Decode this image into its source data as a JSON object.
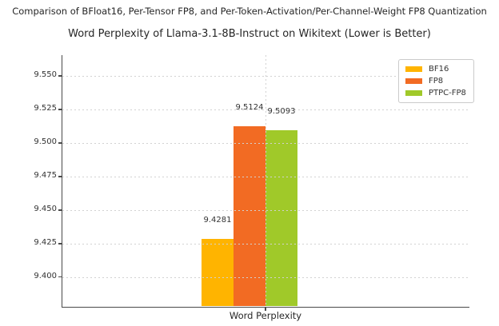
{
  "figure": {
    "suptitle": "Comparison of BFloat16, Per-Tensor FP8, and Per-Token-Activation/Per-Channel-Weight FP8 Quantization"
  },
  "chart_data": {
    "type": "bar",
    "title": "Word Perplexity of Llama-3.1-8B-Instruct on Wikitext (Lower is Better)",
    "categories": [
      "Word Perplexity"
    ],
    "series": [
      {
        "name": "BF16",
        "values": [
          9.4281
        ],
        "data_label": "9.4281",
        "color": "#FFB400"
      },
      {
        "name": "FP8",
        "values": [
          9.5124
        ],
        "data_label": "9.5124",
        "color": "#F26B23"
      },
      {
        "name": "PTPC-FP8",
        "values": [
          9.5093
        ],
        "data_label": "9.5093",
        "color": "#A0C929"
      }
    ],
    "xlabel": "",
    "ylabel": "",
    "x_tick_label": "Word Perplexity",
    "ylim": [
      9.378,
      9.5655
    ],
    "yticks": [
      9.4,
      9.425,
      9.45,
      9.475,
      9.5,
      9.525,
      9.55
    ],
    "ytick_labels": [
      "9.400",
      "9.425",
      "9.450",
      "9.475",
      "9.500",
      "9.525",
      "9.550"
    ],
    "grid": "dotted horizontal and vertical gridlines, drawn over bars",
    "grid_color": "#d2d2d2",
    "legend_position": "upper right",
    "spines": "left and bottom only",
    "background_color": "#ffffff"
  }
}
